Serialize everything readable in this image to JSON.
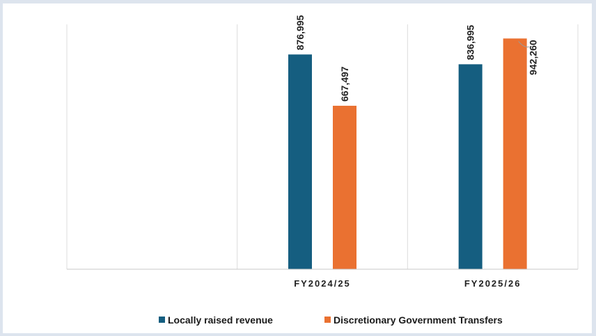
{
  "chart_data": {
    "type": "bar",
    "title": "",
    "xlabel": "",
    "ylabel": "",
    "categories": [
      "",
      "FY2024/25",
      "FY2025/26"
    ],
    "series": [
      {
        "name": "Locally raised revenue",
        "values": [
          null,
          876995,
          836995
        ],
        "labels": [
          "",
          "876,995",
          "836,995"
        ],
        "color": "#155e80"
      },
      {
        "name": "Discretionary Government Transfers",
        "values": [
          null,
          667497,
          942260
        ],
        "labels": [
          "",
          "667,497",
          "942,260"
        ],
        "color": "#ea7131"
      }
    ],
    "ylim": [
      0,
      1000000
    ],
    "grid": false,
    "legend_position": "bottom"
  }
}
